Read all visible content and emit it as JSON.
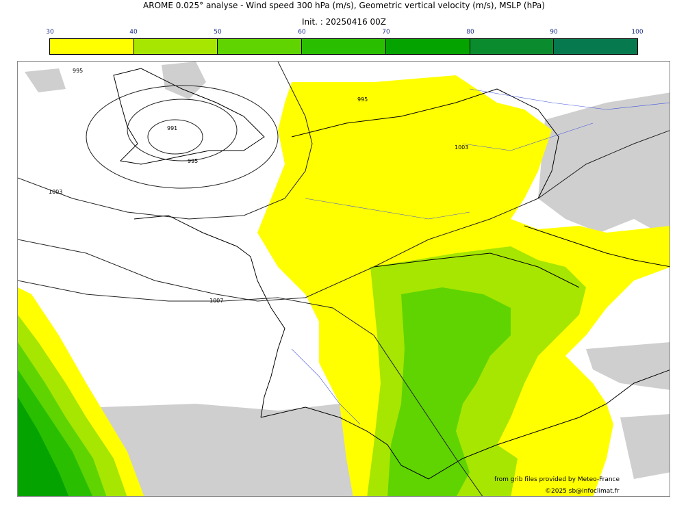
{
  "header": {
    "title": "AROME 0.025° analyse - Wind speed 300 hPa (m/s), Geometric vertical velocity (m/s), MSLP (hPa)",
    "subtitle": "Init. : 20250416 00Z"
  },
  "scale": {
    "labels": [
      "30",
      "40",
      "50",
      "60",
      "70",
      "80",
      "90",
      "100"
    ],
    "colors": [
      "#ffff00",
      "#a6e600",
      "#5fd400",
      "#29bf00",
      "#05a300",
      "#0a8c2e",
      "#07794f"
    ]
  },
  "map": {
    "isobar_labels": [
      "995",
      "991",
      "995",
      "1003",
      "1003",
      "1007",
      "995"
    ]
  },
  "footer": {
    "credit_source": "from grib files provided by Meteo-France",
    "credit_copyright": "©2025 sb@infoclimat.fr"
  }
}
